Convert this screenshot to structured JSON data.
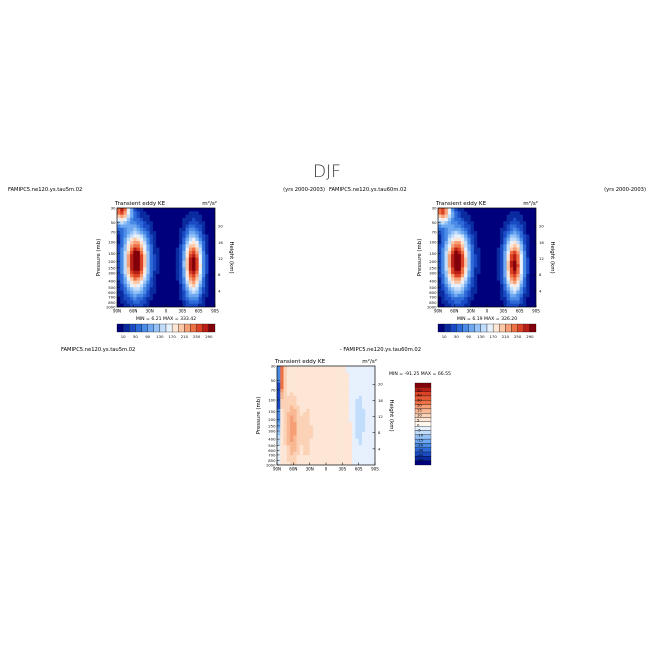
{
  "page_title": "DJF",
  "colors": {
    "contour_scale_top": [
      "#00007d",
      "#0a2aa0",
      "#1b4bc4",
      "#2e6ad8",
      "#4a8be6",
      "#6ea8f0",
      "#96c3f7",
      "#c2dcfb",
      "#e7f1fd",
      "#fde6d6",
      "#fbc7a6",
      "#f69e76",
      "#ee7146",
      "#dc4226",
      "#b91e16",
      "#82000a"
    ],
    "diff_scale": [
      "#00007d",
      "#0a2aa0",
      "#1b4bc4",
      "#2e6ad8",
      "#4a8be6",
      "#6ea8f0",
      "#96c3f7",
      "#c2dcfb",
      "#e7f1fd",
      "#fff6ec",
      "#fde6d6",
      "#fbd2b6",
      "#f9b894",
      "#f69e76",
      "#ee7146",
      "#e25a36",
      "#dc4226",
      "#b91e16",
      "#82000a"
    ]
  },
  "chart_data": [
    {
      "type": "heatmap",
      "case_label": "FAMIPC5.ne120.ys.tau5m.02",
      "years_label": "(yrs 2000-2003)",
      "title": "Transient eddy KE",
      "units": "m²/s²",
      "ylabel": "Pressure (mb)",
      "ylabel_right": "Height (km)",
      "x_ticks": [
        "90N",
        "60N",
        "30N",
        "0",
        "30S",
        "60S",
        "90S"
      ],
      "y_ticks": [
        "30",
        "50",
        "70",
        "100",
        "150",
        "200",
        "250",
        "300",
        "400",
        "500",
        "600",
        "700",
        "850",
        "1000"
      ],
      "y_ticks_right": [
        "20",
        "16",
        "12",
        "8",
        "4"
      ],
      "min_label": "MIN =",
      "min_value": "6.21",
      "max_label": "MAX =",
      "max_value": "333.42",
      "colorbar_labels": [
        "10",
        "50",
        "90",
        "130",
        "170",
        "210",
        "250",
        "290"
      ],
      "centers": [
        {
          "lat": 55,
          "logp": 2.3,
          "amp": 330,
          "sx": 16,
          "sy": 0.33
        },
        {
          "lat": -50,
          "logp": 2.35,
          "amp": 310,
          "sx": 12,
          "sy": 0.33
        },
        {
          "lat": 82,
          "logp": 1.5,
          "amp": 270,
          "sx": 12,
          "sy": 0.16
        }
      ]
    },
    {
      "type": "heatmap",
      "case_label": "FAMIPC5.ne120.ys.tau60m.02",
      "years_label": "(yrs 2000-2003)",
      "title": "Transient eddy KE",
      "units": "m²/s²",
      "ylabel": "Pressure (mb)",
      "ylabel_right": "Height (km)",
      "x_ticks": [
        "90N",
        "60N",
        "30N",
        "0",
        "30S",
        "60S",
        "90S"
      ],
      "y_ticks": [
        "30",
        "50",
        "70",
        "100",
        "150",
        "200",
        "250",
        "300",
        "400",
        "500",
        "600",
        "700",
        "850",
        "1000"
      ],
      "y_ticks_right": [
        "20",
        "16",
        "12",
        "8",
        "4"
      ],
      "min_label": "MIN =",
      "min_value": "6.19",
      "max_label": "MAX =",
      "max_value": "326.20",
      "colorbar_labels": [
        "10",
        "50",
        "90",
        "130",
        "170",
        "210",
        "250",
        "290"
      ],
      "centers": [
        {
          "lat": 55,
          "logp": 2.3,
          "amp": 325,
          "sx": 16,
          "sy": 0.33
        },
        {
          "lat": -50,
          "logp": 2.35,
          "amp": 300,
          "sx": 12,
          "sy": 0.33
        },
        {
          "lat": 82,
          "logp": 1.5,
          "amp": 265,
          "sx": 12,
          "sy": 0.16
        }
      ]
    },
    {
      "type": "heatmap",
      "case_label": "FAMIPC5.ne120.ys.tau5m.02",
      "diff_label": "- FAMIPC5.ne120.ys.tau60m.02",
      "title": "Transient eddy KE",
      "units": "m²/s²",
      "ylabel": "Pressure (mb)",
      "ylabel_right": "Height (km)",
      "x_ticks": [
        "90N",
        "60N",
        "30N",
        "0",
        "30S",
        "60S",
        "90S"
      ],
      "y_ticks": [
        "30",
        "50",
        "70",
        "100",
        "150",
        "200",
        "250",
        "300",
        "400",
        "500",
        "600",
        "700",
        "850",
        "1000"
      ],
      "y_ticks_right": [
        "20",
        "16",
        "12",
        "8",
        "4"
      ],
      "min_label": "MIN =",
      "min_value": "-91.25",
      "max_label": "MAX =",
      "max_value": "66.55",
      "colorbar_labels": [
        "50",
        "40",
        "30",
        "20",
        "15",
        "10",
        "5",
        "0",
        "-5",
        "-10",
        "-15",
        "-20",
        "-30",
        "-40",
        "-50"
      ],
      "centers": [
        {
          "lat": 62,
          "logp": 2.45,
          "amp": 18,
          "sx": 9,
          "sy": 0.35
        },
        {
          "lat": 35,
          "logp": 2.5,
          "amp": 10,
          "sx": 7,
          "sy": 0.3
        },
        {
          "lat": 82,
          "logp": 1.6,
          "amp": 30,
          "sx": 4,
          "sy": 0.3
        },
        {
          "lat": 88,
          "logp": 1.8,
          "amp": -45,
          "sx": 3,
          "sy": 0.45
        },
        {
          "lat": -62,
          "logp": 2.3,
          "amp": -8,
          "sx": 8,
          "sy": 0.4
        },
        {
          "lat": -35,
          "logp": 2.5,
          "amp": 4,
          "sx": 6,
          "sy": 0.3
        }
      ]
    }
  ]
}
